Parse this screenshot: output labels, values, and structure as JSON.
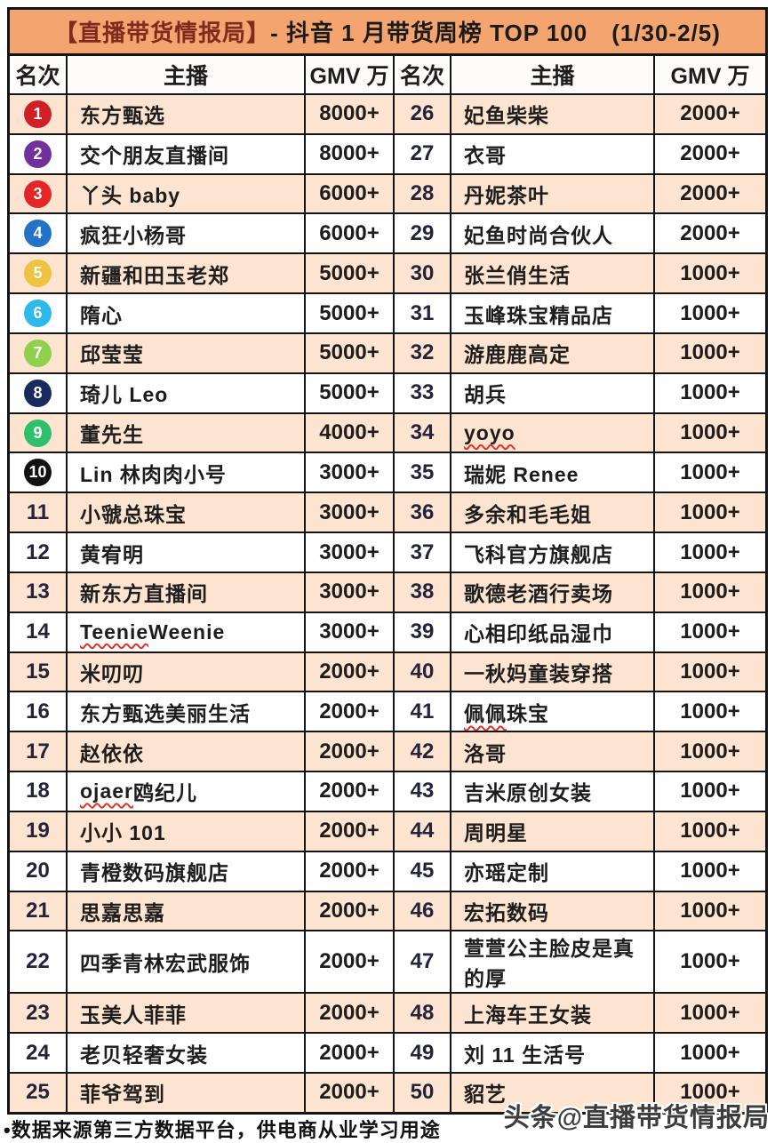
{
  "title": {
    "brand": "【直播带货情报局】",
    "rest": "- 抖音 1 月带货周榜 TOP 100　(1/30-2/5)"
  },
  "footnote": "•数据来源第三方数据平台，供电商从业学习用途",
  "watermark": "头条@直播带货情报局",
  "colors": {
    "title_bar": "#f3a46f",
    "row_peach": "#fce4d0",
    "row_white": "#fefefe",
    "border": "#141414",
    "brand_red": "#7d2b1e",
    "squiggle": "#e0342b"
  },
  "chart_data": {
    "type": "table",
    "title": "【直播带货情报局】- 抖音 1 月带货周榜 TOP 100 (1/30-2/5)",
    "columns": [
      "名次",
      "主播",
      "GMV 万",
      "名次",
      "主播",
      "GMV 万"
    ],
    "left_rows": [
      {
        "rank": "1",
        "name": "东方甄选",
        "gmv": "8000+",
        "badge": "#d01f27"
      },
      {
        "rank": "2",
        "name": "交个朋友直播间",
        "gmv": "8000+",
        "badge": "#7030a0"
      },
      {
        "rank": "3",
        "name": "丫头 baby",
        "gmv": "6000+",
        "badge": "#e52629"
      },
      {
        "rank": "4",
        "name": "疯狂小杨哥",
        "gmv": "6000+",
        "badge": "#2272c8"
      },
      {
        "rank": "5",
        "name": "新疆和田玉老郑",
        "gmv": "5000+",
        "badge": "#efc240"
      },
      {
        "rank": "6",
        "name": "隋心",
        "gmv": "5000+",
        "badge": "#2cb9ec"
      },
      {
        "rank": "7",
        "name": "邱莹莹",
        "gmv": "5000+",
        "badge": "#8fd04c"
      },
      {
        "rank": "8",
        "name": "琦儿 Leo",
        "gmv": "5000+",
        "badge": "#182a5e"
      },
      {
        "rank": "9",
        "name": "董先生",
        "gmv": "4000+",
        "badge": "#2fc06e"
      },
      {
        "rank": "10",
        "name": "Lin 林肉肉小号",
        "gmv": "3000+",
        "badge": "#111111"
      },
      {
        "rank": "11",
        "name": "小虢总珠宝",
        "gmv": "3000+"
      },
      {
        "rank": "12",
        "name": "黄宥明",
        "gmv": "3000+"
      },
      {
        "rank": "13",
        "name": "新东方直播间",
        "gmv": "3000+"
      },
      {
        "rank": "14",
        "name": "Teenie Weenie",
        "gmv": "3000+",
        "squiggle": "Teenie"
      },
      {
        "rank": "15",
        "name": "米叨叨",
        "gmv": "2000+"
      },
      {
        "rank": "16",
        "name": "东方甄选美丽生活",
        "gmv": "2000+"
      },
      {
        "rank": "17",
        "name": "赵依依",
        "gmv": "2000+"
      },
      {
        "rank": "18",
        "name": "ojaer 鸥纪儿",
        "gmv": "2000+",
        "squiggle": "ojaer"
      },
      {
        "rank": "19",
        "name": "小小 101",
        "gmv": "2000+"
      },
      {
        "rank": "20",
        "name": "青橙数码旗舰店",
        "gmv": "2000+"
      },
      {
        "rank": "21",
        "name": "思嘉思嘉",
        "gmv": "2000+"
      },
      {
        "rank": "22",
        "name": "四季青林宏武服饰",
        "gmv": "2000+"
      },
      {
        "rank": "23",
        "name": "玉美人菲菲",
        "gmv": "2000+"
      },
      {
        "rank": "24",
        "name": "老贝轻奢女装",
        "gmv": "2000+"
      },
      {
        "rank": "25",
        "name": "菲爷驾到",
        "gmv": "2000+"
      }
    ],
    "right_rows": [
      {
        "rank": "26",
        "name": "妃鱼柴柴",
        "gmv": "2000+"
      },
      {
        "rank": "27",
        "name": "衣哥",
        "gmv": "2000+"
      },
      {
        "rank": "28",
        "name": "丹妮茶叶",
        "gmv": "2000+"
      },
      {
        "rank": "29",
        "name": "妃鱼时尚合伙人",
        "gmv": "2000+"
      },
      {
        "rank": "30",
        "name": "张兰俏生活",
        "gmv": "1000+"
      },
      {
        "rank": "31",
        "name": "玉峰珠宝精品店",
        "gmv": "1000+"
      },
      {
        "rank": "32",
        "name": "游鹿鹿高定",
        "gmv": "1000+"
      },
      {
        "rank": "33",
        "name": "胡兵",
        "gmv": "1000+"
      },
      {
        "rank": "34",
        "name": "yoyo",
        "gmv": "1000+",
        "squiggle": "yoyo"
      },
      {
        "rank": "35",
        "name": "瑞妮 Renee",
        "gmv": "1000+"
      },
      {
        "rank": "36",
        "name": "多余和毛毛姐",
        "gmv": "1000+"
      },
      {
        "rank": "37",
        "name": "飞科官方旗舰店",
        "gmv": "1000+"
      },
      {
        "rank": "38",
        "name": "歌德老酒行卖场",
        "gmv": "1000+"
      },
      {
        "rank": "39",
        "name": "心相印纸品湿巾",
        "gmv": "1000+"
      },
      {
        "rank": "40",
        "name": "一秋妈童装穿搭",
        "gmv": "1000+"
      },
      {
        "rank": "41",
        "name": "佩佩珠宝",
        "gmv": "1000+",
        "squiggle": "佩佩"
      },
      {
        "rank": "42",
        "name": "洛哥",
        "gmv": "1000+"
      },
      {
        "rank": "43",
        "name": "吉米原创女装",
        "gmv": "1000+"
      },
      {
        "rank": "44",
        "name": "周明星",
        "gmv": "1000+"
      },
      {
        "rank": "45",
        "name": "亦瑶定制",
        "gmv": "1000+"
      },
      {
        "rank": "46",
        "name": "宏拓数码",
        "gmv": "1000+"
      },
      {
        "rank": "47",
        "name": "萱萱公主脸皮是真的厚",
        "gmv": "1000+"
      },
      {
        "rank": "48",
        "name": "上海车王女装",
        "gmv": "1000+"
      },
      {
        "rank": "49",
        "name": "刘 11 生活号",
        "gmv": "1000+"
      },
      {
        "rank": "50",
        "name": "貂艺",
        "gmv": "1000+"
      }
    ]
  }
}
